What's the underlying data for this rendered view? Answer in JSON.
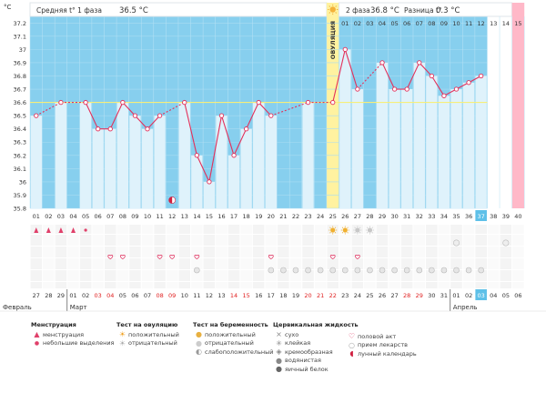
{
  "chart_data": {
    "type": "line",
    "title_left": "Средняя t° 1 фаза",
    "title_left_value": "36.5 °C",
    "title_right_phase": "2 фаза",
    "title_right_value": "36.8 °C",
    "title_right_diff_label": "Разница t°",
    "title_right_diff_value": "0.3 °C",
    "ylabel": "°C",
    "ylim": [
      35.8,
      37.25
    ],
    "yticks": [
      "37.2",
      "37.1",
      "37",
      "36.9",
      "36.8",
      "36.7",
      "36.6",
      "36.5",
      "36.4",
      "36.3",
      "36.2",
      "36.1",
      "36",
      "35.9",
      "35.8"
    ],
    "ovulation_label": "ОВУЛЯЦИЯ",
    "cycle_days": [
      "01",
      "02",
      "03",
      "04",
      "05",
      "06",
      "07",
      "08",
      "09",
      "10",
      "11",
      "12",
      "13",
      "14",
      "15",
      "16",
      "17",
      "18",
      "19",
      "20",
      "21",
      "22",
      "23",
      "24",
      "25",
      "26",
      "27",
      "28",
      "29",
      "30",
      "31",
      "32",
      "33",
      "34",
      "35",
      "36",
      "37",
      "38",
      "39",
      "40"
    ],
    "phase2_days": [
      "01",
      "02",
      "03",
      "04",
      "05",
      "06",
      "07",
      "08",
      "09",
      "10",
      "11",
      "12",
      "13",
      "14",
      "15"
    ],
    "temperatures": [
      36.5,
      null,
      36.6,
      null,
      36.6,
      36.4,
      36.4,
      36.6,
      36.5,
      36.4,
      36.5,
      null,
      36.6,
      36.2,
      36.0,
      36.5,
      36.2,
      36.4,
      36.6,
      36.5,
      null,
      null,
      36.6,
      null,
      36.6,
      37.0,
      36.7,
      null,
      36.9,
      36.7,
      36.7,
      36.9,
      36.8,
      36.65,
      36.7,
      36.75,
      36.8,
      null,
      null,
      null
    ],
    "coverline": 36.6,
    "dates": [
      "27",
      "28",
      "29",
      "01",
      "02",
      "03",
      "04",
      "05",
      "06",
      "07",
      "08",
      "09",
      "10",
      "11",
      "12",
      "13",
      "14",
      "15",
      "16",
      "17",
      "18",
      "19",
      "20",
      "21",
      "22",
      "23",
      "24",
      "25",
      "26",
      "27",
      "28",
      "29",
      "30",
      "31",
      "01",
      "02",
      "03",
      "04",
      "05",
      "06"
    ],
    "red_dates": [
      5,
      6,
      10,
      11,
      16,
      17,
      22,
      23,
      24,
      30,
      31
    ],
    "today_index": 36,
    "months": [
      "Февраль",
      "Март",
      "Апрель"
    ]
  },
  "legend": {
    "menstruation": {
      "title": "Менструация",
      "items": [
        "менструация",
        "небольшие выделения"
      ]
    },
    "ovulation_test": {
      "title": "Тест на овуляцию",
      "items": [
        "положительный",
        "отрицательный"
      ]
    },
    "pregnancy_test": {
      "title": "Тест на беременность",
      "items": [
        "положительный",
        "отрицательный",
        "слабоположительный"
      ]
    },
    "cervical": {
      "title": "Цервикальная жидкость",
      "items": [
        "сухо",
        "клейкая",
        "кремообразная",
        "водянистая",
        "яичный белок"
      ]
    },
    "other": {
      "items": [
        "половой акт",
        "прием лекарств",
        "лунный календарь"
      ]
    }
  }
}
